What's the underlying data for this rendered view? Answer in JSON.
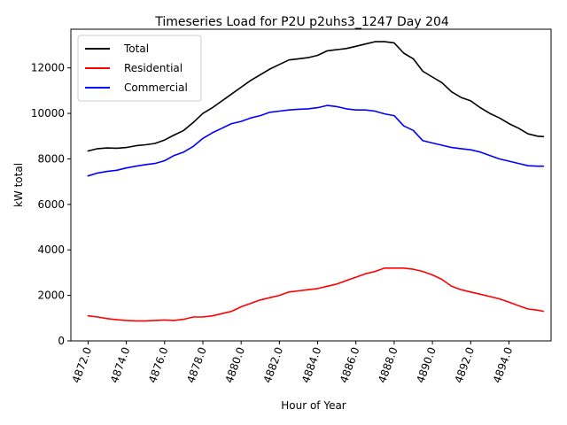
{
  "chart_data": {
    "type": "line",
    "title": "Timeseries Load for P2U p2uhs3_1247  Day 204",
    "xlabel": "Hour of Year",
    "ylabel": "kW total",
    "xlim": [
      4871.1,
      4896.2
    ],
    "ylim": [
      0,
      13700
    ],
    "x_ticks": [
      4872,
      4874,
      4876,
      4878,
      4880,
      4882,
      4884,
      4886,
      4888,
      4890,
      4892,
      4894
    ],
    "x_tick_labels": [
      "4872.0",
      "4874.0",
      "4876.0",
      "4878.0",
      "4880.0",
      "4882.0",
      "4884.0",
      "4886.0",
      "4888.0",
      "4890.0",
      "4892.0",
      "4894.0"
    ],
    "y_ticks": [
      0,
      2000,
      4000,
      6000,
      8000,
      10000,
      12000
    ],
    "y_tick_labels": [
      "0",
      "2000",
      "4000",
      "6000",
      "8000",
      "10000",
      "12000"
    ],
    "grid": false,
    "legend_position": "top-left",
    "x": [
      4872.0,
      4872.5,
      4873.0,
      4873.5,
      4874.0,
      4874.5,
      4875.0,
      4875.5,
      4876.0,
      4876.5,
      4877.0,
      4877.5,
      4878.0,
      4878.5,
      4879.0,
      4879.5,
      4880.0,
      4880.5,
      4881.0,
      4881.5,
      4882.0,
      4882.5,
      4883.0,
      4883.5,
      4884.0,
      4884.5,
      4885.0,
      4885.5,
      4886.0,
      4886.5,
      4887.0,
      4887.5,
      4888.0,
      4888.5,
      4889.0,
      4889.5,
      4890.0,
      4890.5,
      4891.0,
      4891.5,
      4892.0,
      4892.5,
      4893.0,
      4893.5,
      4894.0,
      4894.5,
      4895.0,
      4895.5,
      4895.8
    ],
    "series": [
      {
        "name": "Total",
        "color": "#000000",
        "values": [
          8350,
          8450,
          8480,
          8470,
          8500,
          8580,
          8620,
          8680,
          8830,
          9050,
          9250,
          9600,
          10000,
          10250,
          10550,
          10850,
          11150,
          11450,
          11700,
          11950,
          12150,
          12350,
          12400,
          12450,
          12550,
          12750,
          12800,
          12850,
          12950,
          13050,
          13150,
          13150,
          13100,
          12650,
          12400,
          11850,
          11600,
          11350,
          10950,
          10700,
          10550,
          10250,
          10000,
          9800,
          9550,
          9350,
          9100,
          9000,
          8980
        ]
      },
      {
        "name": "Residential",
        "color": "#ff0000",
        "values": [
          1100,
          1050,
          980,
          930,
          900,
          880,
          880,
          900,
          920,
          900,
          950,
          1050,
          1050,
          1100,
          1200,
          1300,
          1500,
          1650,
          1800,
          1900,
          2000,
          2150,
          2200,
          2250,
          2300,
          2400,
          2500,
          2650,
          2800,
          2950,
          3050,
          3200,
          3200,
          3200,
          3150,
          3050,
          2900,
          2700,
          2400,
          2250,
          2150,
          2050,
          1950,
          1850,
          1700,
          1550,
          1400,
          1350,
          1300
        ]
      },
      {
        "name": "Commercial",
        "color": "#0000ff",
        "values": [
          7250,
          7380,
          7450,
          7500,
          7600,
          7680,
          7750,
          7800,
          7920,
          8150,
          8300,
          8550,
          8900,
          9150,
          9350,
          9550,
          9650,
          9800,
          9900,
          10050,
          10100,
          10150,
          10180,
          10200,
          10250,
          10350,
          10300,
          10200,
          10150,
          10150,
          10100,
          9980,
          9900,
          9450,
          9250,
          8800,
          8700,
          8600,
          8500,
          8450,
          8400,
          8300,
          8150,
          8000,
          7900,
          7800,
          7700,
          7680,
          7680
        ]
      }
    ]
  }
}
